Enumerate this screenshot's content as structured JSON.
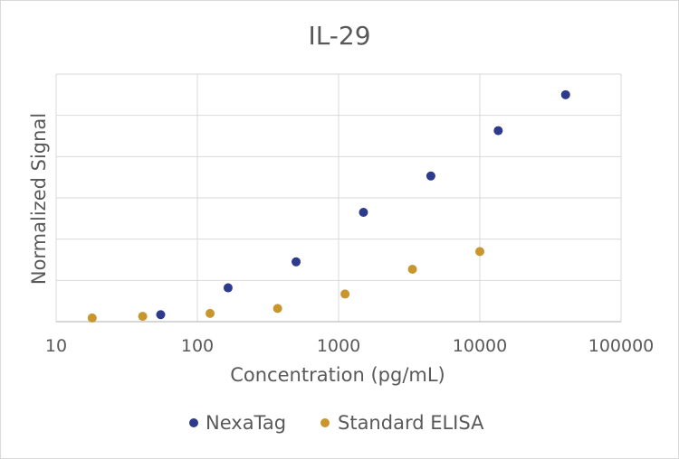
{
  "chart_data": {
    "type": "scatter",
    "title": "IL-29",
    "xlabel": "Concentration (pg/mL)",
    "ylabel": "Normalized Signal",
    "x_scale": "log",
    "xlim": [
      10,
      100000
    ],
    "x_ticks": [
      10,
      100,
      1000,
      10000,
      100000
    ],
    "x_tick_labels": [
      "10",
      "100",
      "1000",
      "10000",
      "100000"
    ],
    "ylim": [
      0,
      6
    ],
    "y_ticks": [
      0,
      1,
      2,
      3,
      4,
      5,
      6
    ],
    "y_tick_labels_shown": false,
    "grid": true,
    "legend_position": "bottom",
    "series": [
      {
        "name": "NexaTag",
        "color": "#2e3a8c",
        "x": [
          55,
          165,
          500,
          1500,
          4500,
          13500,
          40500
        ],
        "y": [
          0.17,
          0.82,
          1.45,
          2.65,
          3.53,
          4.63,
          5.5
        ]
      },
      {
        "name": "Standard ELISA",
        "color": "#c9962e",
        "x": [
          18,
          41,
          123,
          370,
          1111,
          3333,
          10000
        ],
        "y": [
          0.09,
          0.13,
          0.2,
          0.32,
          0.67,
          1.27,
          1.7
        ]
      }
    ]
  }
}
